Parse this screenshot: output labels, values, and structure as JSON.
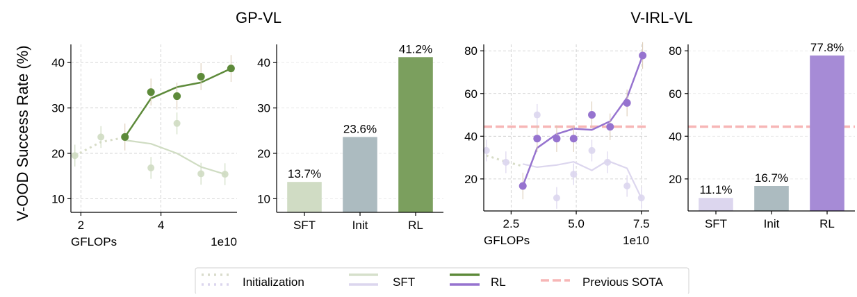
{
  "colors": {
    "init": "#d7dcc7",
    "sft_gp": "#cfdcc2",
    "sft_virl": "#dcd6ee",
    "rl_gp": "#5d8a3a",
    "rl_virl": "#9673cf",
    "bar_sft_gp": "#d0dcc4",
    "bar_init": "#acbbc0",
    "bar_rl_gp": "#7b9f5e",
    "bar_sft_virl": "#dcd6ee",
    "bar_rl_virl": "#a68bd6",
    "sota": "#f7b6b6",
    "legend_init": "#d9dccc",
    "legend_sft": "#d6e0cb",
    "legend_sft2": "#dcd6ee",
    "legend_rl": "#5d8a3a",
    "legend_rl2": "#9673cf"
  },
  "texts": {
    "ylabel": "V-OOD Success Rate (%)",
    "title_gp": "GP-VL",
    "title_virl": "V-IRL-VL"
  },
  "legend": {
    "init": "Initialization",
    "sft": "SFT",
    "rl": "RL",
    "sota": "Previous SOTA"
  },
  "chart_data": [
    {
      "id": "gp_line",
      "type": "line",
      "xlabel": "GFLOPs",
      "x_multiplier": "1e10",
      "xlim": [
        1.75,
        5.9
      ],
      "ylim": [
        7,
        44
      ],
      "xticks": [
        2,
        4
      ],
      "yticks": [
        10,
        20,
        30,
        40
      ],
      "series": [
        {
          "key": "init",
          "x": [
            1.85,
            2.5,
            3.1
          ],
          "y": [
            19.5,
            22.5,
            23.5
          ]
        },
        {
          "key": "sft_points",
          "x": [
            1.85,
            2.5,
            3.75,
            4.4,
            5.0,
            5.6
          ],
          "y": [
            19.5,
            23.6,
            16.8,
            26.6,
            15.5,
            15.4
          ]
        },
        {
          "key": "sft_trend",
          "x": [
            3.1,
            3.75,
            4.4,
            5.0,
            5.6
          ],
          "y": [
            22.9,
            22.1,
            20.0,
            17.0,
            15.4
          ]
        },
        {
          "key": "rl_points",
          "x": [
            3.1,
            3.75,
            4.4,
            5.0,
            5.75
          ],
          "y": [
            23.6,
            33.5,
            32.6,
            36.9,
            38.7
          ]
        },
        {
          "key": "rl_trend",
          "x": [
            3.1,
            3.75,
            4.4,
            5.0,
            5.75
          ],
          "y": [
            23.6,
            32.1,
            34.6,
            35.6,
            38.7
          ]
        }
      ]
    },
    {
      "id": "gp_bar",
      "type": "bar",
      "ylim": [
        7,
        44
      ],
      "yticks": [
        10,
        20,
        30,
        40
      ],
      "categories": [
        "SFT",
        "Init",
        "RL"
      ],
      "values": [
        13.7,
        23.6,
        41.2
      ],
      "data_labels": [
        "13.7%",
        "23.6%",
        "41.2%"
      ]
    },
    {
      "id": "virl_line",
      "type": "line",
      "xlabel": "GFLOPs",
      "x_multiplier": "1e10",
      "xlim": [
        1.45,
        7.8
      ],
      "ylim": [
        5,
        83
      ],
      "xticks": [
        2.5,
        5.0,
        7.5
      ],
      "yticks": [
        20,
        40,
        60,
        80
      ],
      "sota": 44.5,
      "series": [
        {
          "key": "init",
          "x": [
            1.55,
            2.3,
            2.95
          ],
          "y": [
            31,
            28,
            26
          ]
        },
        {
          "key": "sft_points",
          "x": [
            1.55,
            2.3,
            3.5,
            4.25,
            4.9,
            5.6,
            6.2,
            6.95,
            7.5
          ],
          "y": [
            33.3,
            27.8,
            50.0,
            11.1,
            22.2,
            33.3,
            27.8,
            16.7,
            11.1
          ]
        },
        {
          "key": "sft_trend",
          "x": [
            2.95,
            3.5,
            4.25,
            4.9,
            5.6,
            6.2,
            6.95,
            7.5
          ],
          "y": [
            27,
            25.5,
            26.5,
            28,
            24,
            28.5,
            25,
            11
          ]
        },
        {
          "key": "rl_points",
          "x": [
            2.95,
            3.5,
            4.25,
            4.9,
            5.6,
            6.3,
            6.95,
            7.55
          ],
          "y": [
            16.7,
            38.9,
            38.9,
            38.9,
            50.0,
            44.4,
            55.6,
            77.8
          ]
        },
        {
          "key": "rl_trend",
          "x": [
            2.95,
            3.5,
            4.25,
            4.9,
            5.6,
            6.3,
            6.95,
            7.55
          ],
          "y": [
            16.7,
            34.5,
            41.0,
            43.5,
            43.0,
            47.0,
            58.0,
            77.8
          ]
        }
      ]
    },
    {
      "id": "virl_bar",
      "type": "bar",
      "ylim": [
        5,
        83
      ],
      "yticks": [
        20,
        40,
        60,
        80
      ],
      "sota": 44.5,
      "categories": [
        "SFT",
        "Init",
        "RL"
      ],
      "values": [
        11.1,
        16.7,
        77.8
      ],
      "data_labels": [
        "11.1%",
        "16.7%",
        "77.8%"
      ]
    }
  ]
}
